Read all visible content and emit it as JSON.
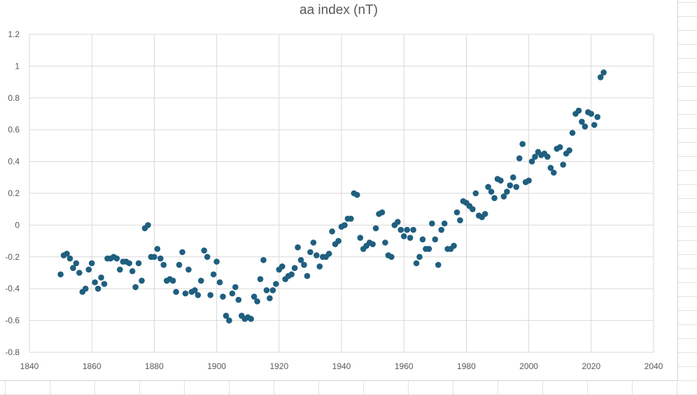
{
  "chart_data": {
    "type": "scatter",
    "title": "aa index (nT)",
    "xlabel": "",
    "ylabel": "",
    "xlim": [
      1840,
      2040
    ],
    "ylim": [
      -0.8,
      1.2
    ],
    "xticks": [
      "1840",
      "1860",
      "1880",
      "1900",
      "1920",
      "1940",
      "1960",
      "1980",
      "2000",
      "2020",
      "2040"
    ],
    "yticks": [
      "1.2",
      "1",
      "0.8",
      "0.6",
      "0.4",
      "0.2",
      "0",
      "-0.2",
      "-0.4",
      "-0.6",
      "-0.8"
    ],
    "grid": true,
    "marker_color": "#1f5f7f",
    "x": [
      1850,
      1851,
      1852,
      1853,
      1854,
      1855,
      1856,
      1857,
      1858,
      1859,
      1860,
      1861,
      1862,
      1863,
      1864,
      1865,
      1866,
      1867,
      1868,
      1869,
      1870,
      1871,
      1872,
      1873,
      1874,
      1875,
      1876,
      1877,
      1878,
      1879,
      1880,
      1881,
      1882,
      1883,
      1884,
      1885,
      1886,
      1887,
      1888,
      1889,
      1890,
      1891,
      1892,
      1893,
      1894,
      1895,
      1896,
      1897,
      1898,
      1899,
      1900,
      1901,
      1902,
      1903,
      1904,
      1905,
      1906,
      1907,
      1908,
      1909,
      1910,
      1911,
      1912,
      1913,
      1914,
      1915,
      1916,
      1917,
      1918,
      1919,
      1920,
      1921,
      1922,
      1923,
      1924,
      1925,
      1926,
      1927,
      1928,
      1929,
      1930,
      1931,
      1932,
      1933,
      1934,
      1935,
      1936,
      1937,
      1938,
      1939,
      1940,
      1941,
      1942,
      1943,
      1944,
      1945,
      1946,
      1947,
      1948,
      1949,
      1950,
      1951,
      1952,
      1953,
      1954,
      1955,
      1956,
      1957,
      1958,
      1959,
      1960,
      1961,
      1962,
      1963,
      1964,
      1965,
      1966,
      1967,
      1968,
      1969,
      1970,
      1971,
      1972,
      1973,
      1974,
      1975,
      1976,
      1977,
      1978,
      1979,
      1980,
      1981,
      1982,
      1983,
      1984,
      1985,
      1986,
      1987,
      1988,
      1989,
      1990,
      1991,
      1992,
      1993,
      1994,
      1995,
      1996,
      1997,
      1998,
      1999,
      2000,
      2001,
      2002,
      2003,
      2004,
      2005,
      2006,
      2007,
      2008,
      2009,
      2010,
      2011,
      2012,
      2013,
      2014,
      2015,
      2016,
      2017,
      2018,
      2019,
      2020,
      2021,
      2022,
      2023,
      2024
    ],
    "y": [
      -0.31,
      -0.19,
      -0.18,
      -0.21,
      -0.27,
      -0.24,
      -0.3,
      -0.42,
      -0.4,
      -0.28,
      -0.24,
      -0.36,
      -0.4,
      -0.33,
      -0.37,
      -0.21,
      -0.21,
      -0.2,
      -0.21,
      -0.28,
      -0.23,
      -0.23,
      -0.24,
      -0.29,
      -0.39,
      -0.24,
      -0.35,
      -0.02,
      0.0,
      -0.2,
      -0.2,
      -0.15,
      -0.21,
      -0.25,
      -0.35,
      -0.34,
      -0.35,
      -0.42,
      -0.25,
      -0.17,
      -0.43,
      -0.28,
      -0.42,
      -0.41,
      -0.44,
      -0.35,
      -0.16,
      -0.2,
      -0.44,
      -0.31,
      -0.23,
      -0.36,
      -0.45,
      -0.57,
      -0.6,
      -0.43,
      -0.39,
      -0.47,
      -0.57,
      -0.59,
      -0.58,
      -0.59,
      -0.45,
      -0.48,
      -0.34,
      -0.22,
      -0.41,
      -0.46,
      -0.41,
      -0.37,
      -0.28,
      -0.26,
      -0.34,
      -0.32,
      -0.31,
      -0.27,
      -0.14,
      -0.22,
      -0.25,
      -0.32,
      -0.17,
      -0.11,
      -0.19,
      -0.26,
      -0.2,
      -0.2,
      -0.18,
      -0.04,
      -0.12,
      -0.1,
      -0.01,
      0.0,
      0.04,
      0.04,
      0.2,
      0.19,
      -0.08,
      -0.15,
      -0.13,
      -0.11,
      -0.12,
      -0.02,
      0.07,
      0.08,
      -0.11,
      -0.19,
      -0.2,
      0.0,
      0.02,
      -0.03,
      -0.07,
      -0.03,
      -0.08,
      -0.03,
      -0.24,
      -0.2,
      -0.09,
      -0.15,
      -0.15,
      0.01,
      -0.09,
      -0.25,
      -0.03,
      0.01,
      -0.15,
      -0.15,
      -0.13,
      0.08,
      0.03,
      0.15,
      0.14,
      0.12,
      0.1,
      0.2,
      0.06,
      0.05,
      0.07,
      0.24,
      0.21,
      0.17,
      0.29,
      0.28,
      0.18,
      0.21,
      0.25,
      0.3,
      0.24,
      0.42,
      0.51,
      0.27,
      0.28,
      0.4,
      0.43,
      0.46,
      0.44,
      0.45,
      0.43,
      0.36,
      0.33,
      0.48,
      0.49,
      0.38,
      0.45,
      0.47,
      0.58,
      0.7,
      0.72,
      0.65,
      0.62,
      0.71,
      0.7,
      0.63,
      0.68,
      0.93,
      0.96
    ]
  }
}
